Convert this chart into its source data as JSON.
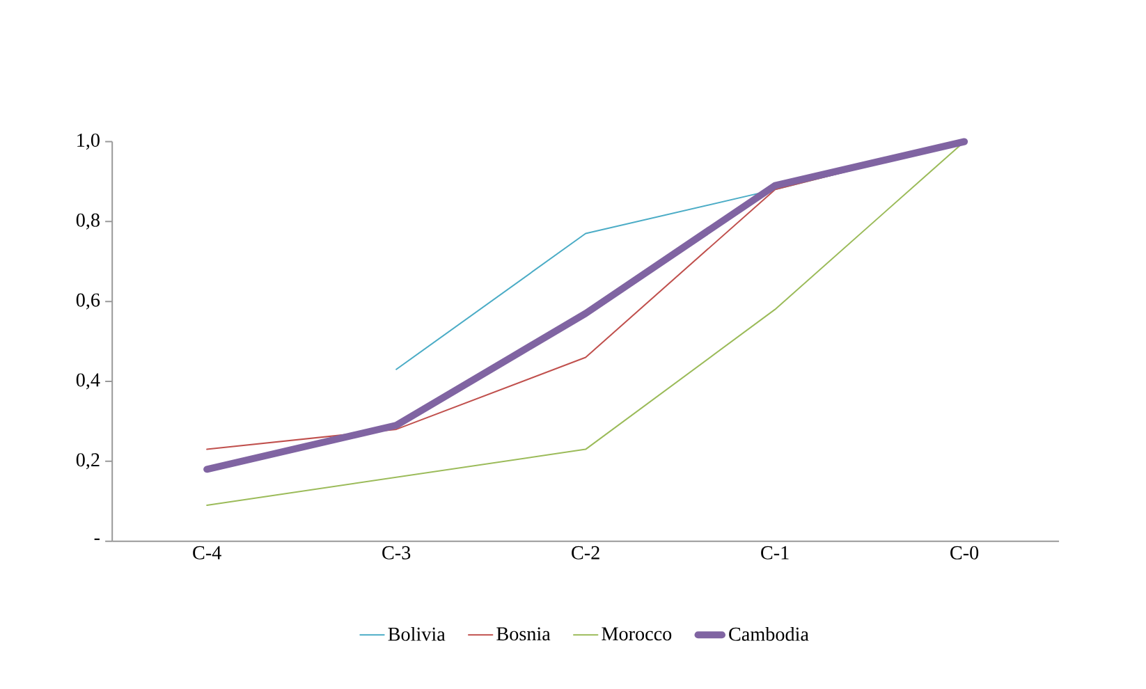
{
  "chart_data": {
    "type": "line",
    "categories": [
      "C-4",
      "C-3",
      "C-2",
      "C-1",
      "C-0"
    ],
    "ylim": [
      0,
      1
    ],
    "yticks": [
      {
        "value": 0,
        "label": "-"
      },
      {
        "value": 0.2,
        "label": "0,2"
      },
      {
        "value": 0.4,
        "label": "0,4"
      },
      {
        "value": 0.6,
        "label": "0,6"
      },
      {
        "value": 0.8,
        "label": "0,8"
      },
      {
        "value": 1,
        "label": "1,0"
      }
    ],
    "grid": false,
    "legend": "bottom",
    "marker": "none",
    "line_style": "solid",
    "series": [
      {
        "name": "Bolivia",
        "color": "#4bacc6",
        "values": [
          null,
          0.43,
          0.77,
          0.88,
          1.0
        ]
      },
      {
        "name": "Bosnia",
        "color": "#c0504d",
        "values": [
          0.23,
          0.28,
          0.46,
          0.88,
          1.0
        ]
      },
      {
        "name": "Morocco",
        "color": "#9bbb59",
        "values": [
          0.09,
          0.16,
          0.23,
          0.58,
          1.0
        ]
      },
      {
        "name": "Cambodia",
        "color": "#8064a2",
        "values": [
          0.18,
          0.29,
          0.57,
          0.89,
          1.0
        ]
      }
    ]
  }
}
